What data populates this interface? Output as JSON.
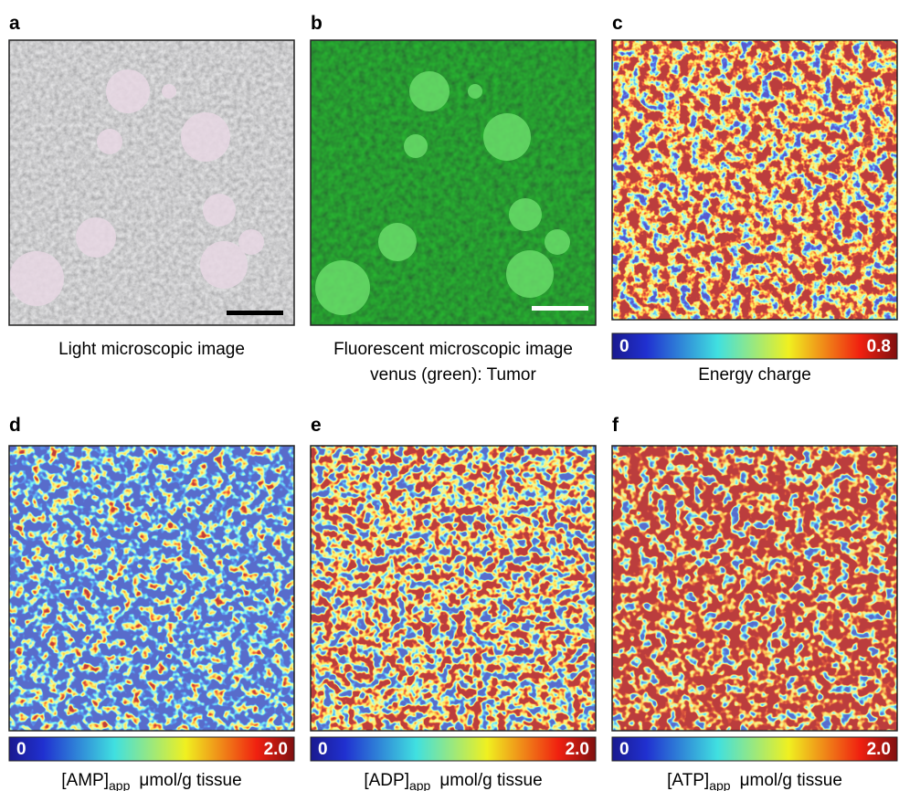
{
  "panels": [
    {
      "letter": "a",
      "caption": [
        "Light microscopic image"
      ]
    },
    {
      "letter": "b",
      "caption": [
        "Fluorescent microscopic image",
        "venus (green): Tumor"
      ]
    },
    {
      "letter": "c",
      "colorbar": {
        "min": "0",
        "max": "0.8"
      },
      "caption": [
        "Energy charge"
      ]
    },
    {
      "letter": "d",
      "colorbar": {
        "min": "0",
        "max": "2.0"
      },
      "caption_main": "[AMP]",
      "caption_sub": "app",
      "caption_unit": "μmol/g tissue"
    },
    {
      "letter": "e",
      "colorbar": {
        "min": "0",
        "max": "2.0"
      },
      "caption_main": "[ADP]",
      "caption_sub": "app",
      "caption_unit": "μmol/g tissue"
    },
    {
      "letter": "f",
      "colorbar": {
        "min": "0",
        "max": "2.0"
      },
      "caption_main": "[ATP]",
      "caption_sub": "app",
      "caption_unit": "μmol/g tissue"
    }
  ]
}
